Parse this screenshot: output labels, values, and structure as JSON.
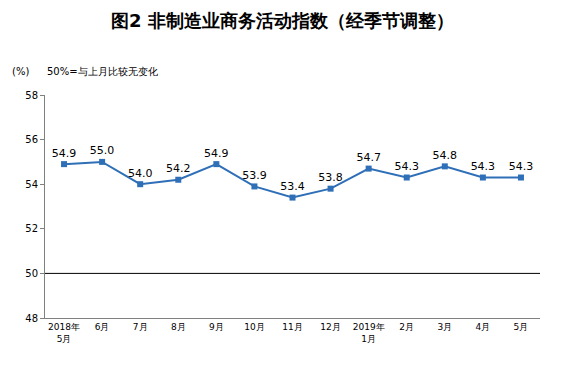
{
  "chart_data": {
    "type": "line",
    "title": "图2 非制造业商务活动指数（经季节调整）",
    "y_label": "(%)",
    "annotations": [
      "50%=与上月比较无变化"
    ],
    "categories": [
      "2018年\n5月",
      "6月",
      "7月",
      "8月",
      "9月",
      "10月",
      "11月",
      "12月",
      "2019年\n1月",
      "2月",
      "3月",
      "4月",
      "5月"
    ],
    "values": [
      54.9,
      55.0,
      54.0,
      54.2,
      54.9,
      53.9,
      53.4,
      53.8,
      54.7,
      54.3,
      54.8,
      54.3,
      54.3
    ],
    "value_labels": [
      "54.9",
      "55.0",
      "54.0",
      "54.2",
      "54.9",
      "53.9",
      "53.4",
      "53.8",
      "54.7",
      "54.3",
      "54.8",
      "54.3",
      "54.3"
    ],
    "data_labels": true,
    "color": "#2e6fb7",
    "marker": "square",
    "line_style": "solid",
    "ylim": [
      48,
      58
    ],
    "yticks": [
      48,
      50,
      52,
      54,
      56,
      58
    ],
    "reference_line": 50,
    "grid": false
  }
}
